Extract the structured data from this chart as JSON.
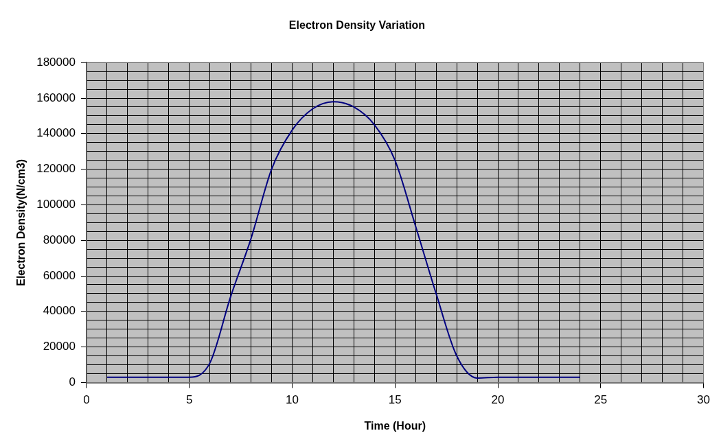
{
  "chart_data": {
    "type": "line",
    "title": "Electron Density Variation",
    "xlabel": "Time (Hour)",
    "ylabel": "Electron Density(N/cm3)",
    "x": [
      1,
      2,
      3,
      4,
      5,
      6,
      7,
      8,
      9,
      10,
      11,
      12,
      13,
      14,
      15,
      16,
      17,
      18,
      19,
      20,
      21,
      22,
      23,
      24
    ],
    "series": [
      {
        "color": "#000080",
        "values": [
          3000,
          3000,
          3000,
          3000,
          3000,
          11000,
          48000,
          81000,
          120000,
          142000,
          154000,
          158000,
          155000,
          145000,
          125000,
          88000,
          50000,
          15000,
          2500,
          3000,
          3000,
          3000,
          3000,
          3000
        ]
      }
    ],
    "xlim": [
      0,
      30
    ],
    "xticks": [
      0,
      {
        "value": 1,
        "label": null
      },
      {
        "value": 2,
        "label": null
      },
      {
        "value": 3,
        "label": null
      },
      {
        "value": 4,
        "label": null
      },
      5,
      {
        "value": 6,
        "label": null
      },
      {
        "value": 7,
        "label": null
      },
      {
        "value": 8,
        "label": null
      },
      {
        "value": 9,
        "label": null
      },
      10,
      {
        "value": 11,
        "label": null
      },
      {
        "value": 12,
        "label": null
      },
      {
        "value": 13,
        "label": null
      },
      {
        "value": 14,
        "label": null
      },
      15,
      {
        "value": 16,
        "label": null
      },
      {
        "value": 17,
        "label": null
      },
      {
        "value": 18,
        "label": null
      },
      {
        "value": 19,
        "label": null
      },
      20,
      {
        "value": 21,
        "label": null
      },
      {
        "value": 22,
        "label": null
      },
      {
        "value": 23,
        "label": null
      },
      {
        "value": 24,
        "label": null
      },
      25,
      {
        "value": 26,
        "label": null
      },
      {
        "value": 27,
        "label": null
      },
      {
        "value": 28,
        "label": null
      },
      {
        "value": 29,
        "label": null
      },
      30
    ],
    "ylim": [
      0,
      180000
    ],
    "yticks": [
      0,
      {
        "value": 5000,
        "label": null
      },
      {
        "value": 10000,
        "label": null
      },
      {
        "value": 15000,
        "label": null
      },
      20000,
      {
        "value": 25000,
        "label": null
      },
      {
        "value": 30000,
        "label": null
      },
      {
        "value": 35000,
        "label": null
      },
      40000,
      {
        "value": 45000,
        "label": null
      },
      {
        "value": 50000,
        "label": null
      },
      {
        "value": 55000,
        "label": null
      },
      60000,
      {
        "value": 65000,
        "label": null
      },
      {
        "value": 70000,
        "label": null
      },
      {
        "value": 75000,
        "label": null
      },
      80000,
      {
        "value": 85000,
        "label": null
      },
      {
        "value": 90000,
        "label": null
      },
      {
        "value": 95000,
        "label": null
      },
      100000,
      {
        "value": 105000,
        "label": null
      },
      {
        "value": 110000,
        "label": null
      },
      {
        "value": 115000,
        "label": null
      },
      120000,
      {
        "value": 125000,
        "label": null
      },
      {
        "value": 130000,
        "label": null
      },
      {
        "value": 135000,
        "label": null
      },
      140000,
      {
        "value": 145000,
        "label": null
      },
      {
        "value": 150000,
        "label": null
      },
      {
        "value": 155000,
        "label": null
      },
      160000,
      {
        "value": 165000,
        "label": null
      },
      {
        "value": 170000,
        "label": null
      },
      {
        "value": 175000,
        "label": null
      },
      180000
    ],
    "grid": true,
    "legend": false,
    "marker": "none",
    "line_style": "solid"
  }
}
